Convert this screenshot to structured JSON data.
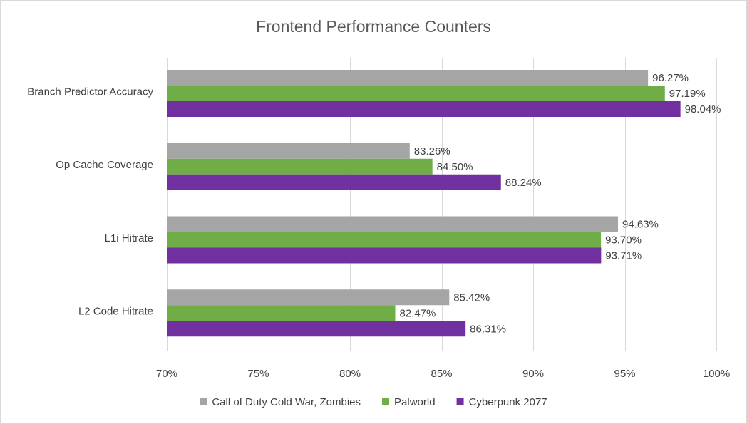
{
  "chart_data": {
    "type": "bar",
    "orientation": "horizontal",
    "title": "Frontend Performance Counters",
    "xlabel": "",
    "ylabel": "",
    "xlim": [
      70,
      100
    ],
    "x_ticks": [
      70,
      75,
      80,
      85,
      90,
      95,
      100
    ],
    "x_tick_labels": [
      "70%",
      "75%",
      "80%",
      "85%",
      "90%",
      "95%",
      "100%"
    ],
    "grid": true,
    "legend_position": "bottom",
    "categories": [
      "Branch Predictor Accuracy",
      "Op Cache Coverage",
      "L1i Hitrate",
      "L2 Code Hitrate"
    ],
    "series": [
      {
        "name": "Call of Duty Cold War, Zombies",
        "color": "#a5a5a5",
        "values": [
          96.27,
          83.26,
          94.63,
          85.42
        ],
        "labels": [
          "96.27%",
          "83.26%",
          "94.63%",
          "85.42%"
        ]
      },
      {
        "name": "Palworld",
        "color": "#70ad47",
        "values": [
          97.19,
          84.5,
          93.7,
          82.47
        ],
        "labels": [
          "97.19%",
          "84.50%",
          "93.70%",
          "82.47%"
        ]
      },
      {
        "name": "Cyberpunk 2077",
        "color": "#7030a0",
        "values": [
          98.04,
          88.24,
          93.71,
          86.31
        ],
        "labels": [
          "98.04%",
          "88.24%",
          "93.71%",
          "86.31%"
        ]
      }
    ]
  }
}
